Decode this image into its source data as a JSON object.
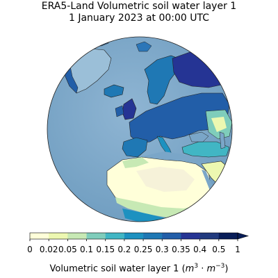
{
  "title": {
    "line1": "ERA5-Land Volumetric soil water layer 1",
    "line2": "1 January 2023 at 00:00 UTC"
  },
  "colorbar": {
    "ticks": [
      "0",
      "0.02",
      "0.05",
      "0.1",
      "0.15",
      "0.2",
      "0.25",
      "0.3",
      "0.35",
      "0.4",
      "0.5",
      "1"
    ],
    "colors": [
      "#ffffd9",
      "#edf8b1",
      "#c7e9b4",
      "#7fcdbb",
      "#41b6c4",
      "#1d91c0",
      "#1f78b4",
      "#225ea8",
      "#253494",
      "#213a7e",
      "#081d58"
    ],
    "extend": "max",
    "label_main": "Volumetric soil water layer 1 (",
    "label_unit_m": "m",
    "label_exp1": "3",
    "label_dot": " · ",
    "label_exp2": "−3",
    "label_close": ")"
  },
  "map": {
    "projection": "orthographic",
    "ocean_color": "#7aa6c8",
    "land_wet_color": "#225ea8",
    "land_dry_color": "#ffffd9",
    "coastline_color": "#222222"
  }
}
